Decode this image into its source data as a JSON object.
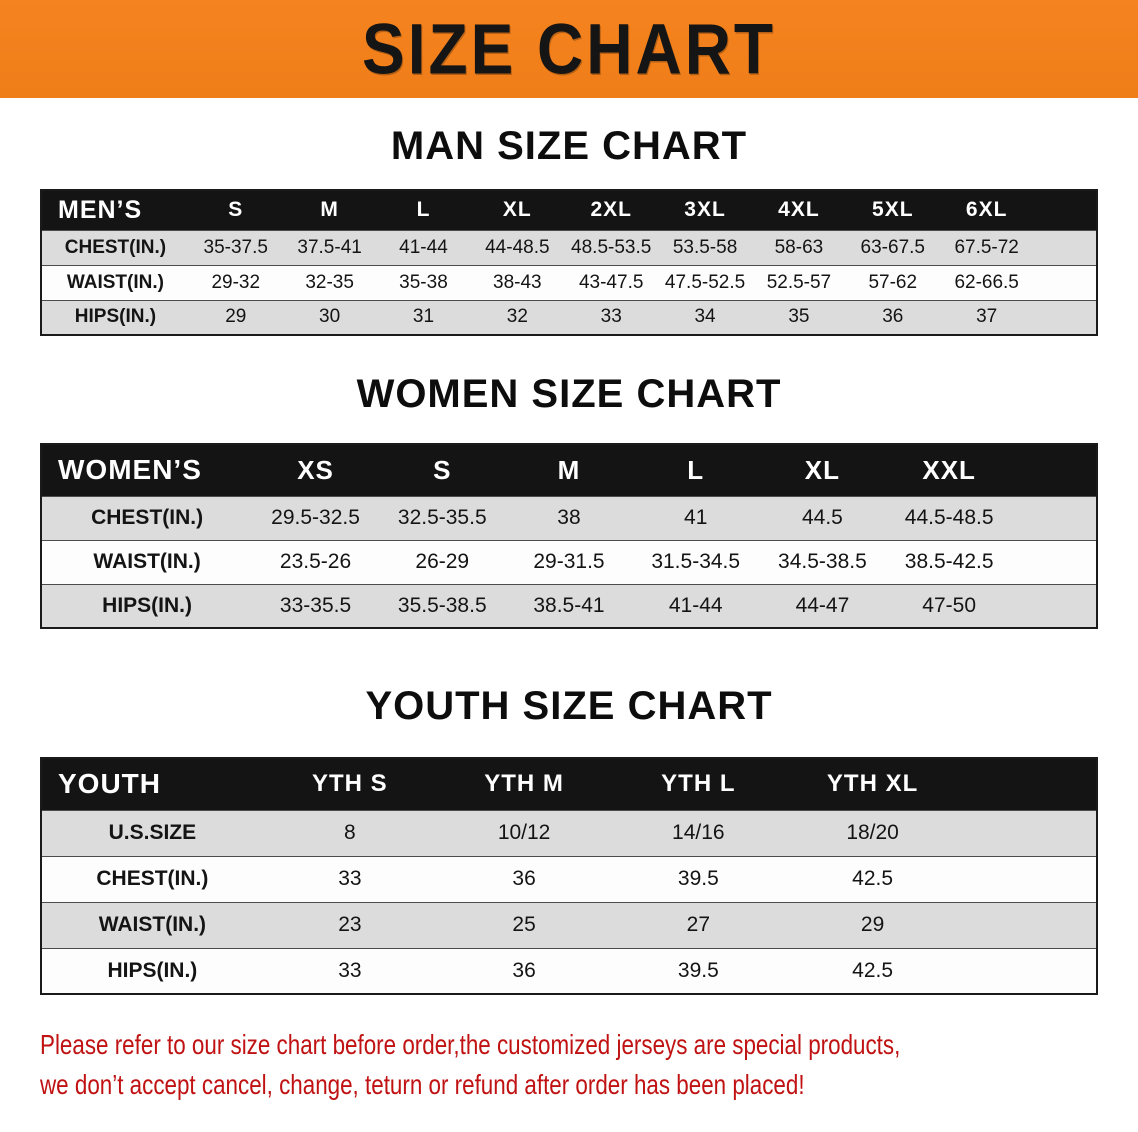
{
  "banner": {
    "title": "SIZE CHART"
  },
  "sections": [
    {
      "heading": "MAN SIZE CHART",
      "table": {
        "header": [
          "MEN’S",
          "S",
          "M",
          "L",
          "XL",
          "2XL",
          "3XL",
          "4XL",
          "5XL",
          "6XL"
        ],
        "rows": [
          [
            "CHEST(IN.)",
            "35-37.5",
            "37.5-41",
            "41-44",
            "44-48.5",
            "48.5-53.5",
            "53.5-58",
            "58-63",
            "63-67.5",
            "67.5-72"
          ],
          [
            "WAIST(IN.)",
            "29-32",
            "32-35",
            "35-38",
            "38-43",
            "43-47.5",
            "47.5-52.5",
            "52.5-57",
            "57-62",
            "62-66.5"
          ],
          [
            "HIPS(IN.)",
            "29",
            "30",
            "31",
            "32",
            "33",
            "34",
            "35",
            "36",
            "37"
          ]
        ]
      }
    },
    {
      "heading": "WOMEN SIZE CHART",
      "table": {
        "header": [
          "WOMEN’S",
          "XS",
          "S",
          "M",
          "L",
          "XL",
          "XXL"
        ],
        "rows": [
          [
            "CHEST(IN.)",
            "29.5-32.5",
            "32.5-35.5",
            "38",
            "41",
            "44.5",
            "44.5-48.5"
          ],
          [
            "WAIST(IN.)",
            "23.5-26",
            "26-29",
            "29-31.5",
            "31.5-34.5",
            "34.5-38.5",
            "38.5-42.5"
          ],
          [
            "HIPS(IN.)",
            "33-35.5",
            "35.5-38.5",
            "38.5-41",
            "41-44",
            "44-47",
            "47-50"
          ]
        ]
      }
    },
    {
      "heading": "YOUTH SIZE CHART",
      "table": {
        "header": [
          "YOUTH",
          "YTH S",
          "YTH M",
          "YTH L",
          "YTH XL"
        ],
        "rows": [
          [
            "U.S.SIZE",
            "8",
            "10/12",
            "14/16",
            "18/20"
          ],
          [
            "CHEST(IN.)",
            "33",
            "36",
            "39.5",
            "42.5"
          ],
          [
            "WAIST(IN.)",
            "23",
            "25",
            "27",
            "29"
          ],
          [
            "HIPS(IN.)",
            "33",
            "36",
            "39.5",
            "42.5"
          ]
        ]
      }
    }
  ],
  "footer": {
    "line1": "Please refer to our size chart before order,the customized jerseys are special products,",
    "line2": "we don’t accept cancel, change, teturn or refund after order has been placed!"
  },
  "colors": {
    "banner_bg": "#F5831F",
    "bar_bg": "#141414",
    "stripe_bg": "#DCDCDC",
    "footer_red": "#C01212"
  }
}
